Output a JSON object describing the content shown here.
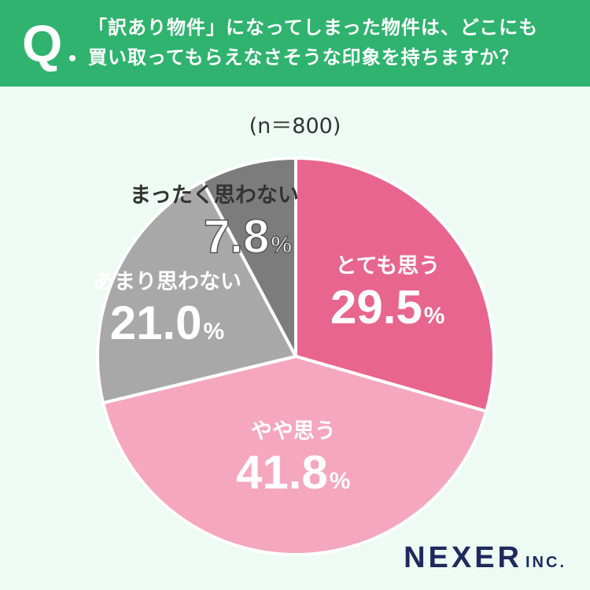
{
  "header": {
    "q_mark": "Q",
    "question_line1": "「訳あり物件」になってしまった物件は、どこにも",
    "question_line2": "買い取ってもらえなさそうな印象を持ちますか？"
  },
  "sample_size": "(n＝800)",
  "chart_data": {
    "type": "pie",
    "title": "「訳あり物件」になってしまった物件は、どこにも買い取ってもらえなさそうな印象を持ちますか？",
    "n": "(n＝800)",
    "slices": [
      {
        "label": "とても思う",
        "value": 29.5,
        "display": "29.5",
        "color": "#e8668e"
      },
      {
        "label": "やや思う",
        "value": 41.8,
        "display": "41.8",
        "color": "#f5a7bf"
      },
      {
        "label": "あまり思わない",
        "value": 21.0,
        "display": "21.0",
        "color": "#a8a8a8"
      },
      {
        "label": "まったく思わない",
        "value": 7.8,
        "display": "7.8",
        "color": "#7c7c7c"
      }
    ],
    "unit": "%",
    "start": "top, clockwise"
  },
  "logo": {
    "main": "NEXER",
    "sub": "INC."
  }
}
